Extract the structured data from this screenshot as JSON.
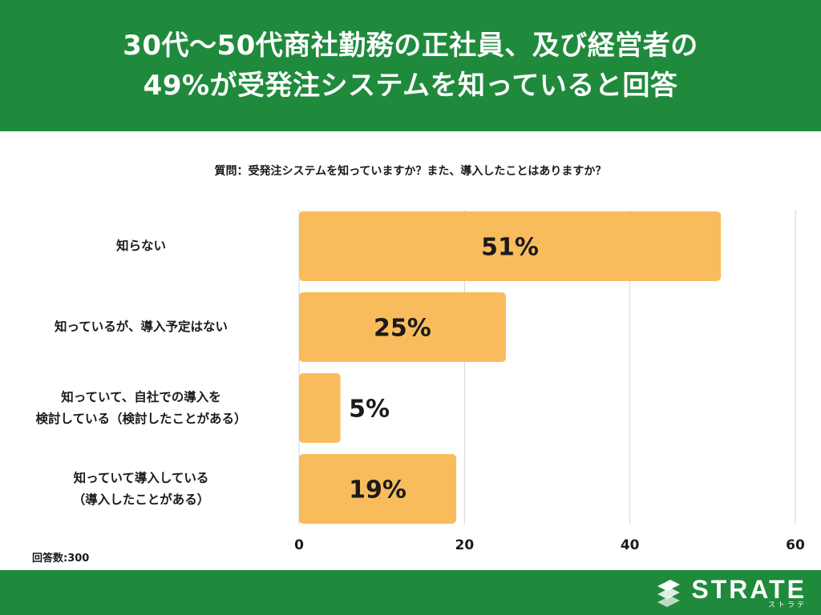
{
  "header": {
    "title_line1": "30代〜50代商社勤務の正社員、及び経営者の",
    "title_line2": "49%が受発注システムを知っていると回答"
  },
  "question": "質問：受発注システムを知っていますか？また、導入したことはありますか？",
  "chart_data": {
    "type": "bar",
    "orientation": "horizontal",
    "categories": [
      [
        "知らない"
      ],
      [
        "知っているが、導入予定はない"
      ],
      [
        "知っていて、自社での導入を",
        "検討している（検討したことがある）"
      ],
      [
        "知っていて導入している",
        "（導入したことがある）"
      ]
    ],
    "values": [
      51,
      25,
      5,
      19
    ],
    "data_labels": [
      "51%",
      "25%",
      "5%",
      "19%"
    ],
    "xlim": [
      0,
      60
    ],
    "x_ticks": [
      "0",
      "20",
      "40",
      "60"
    ],
    "grid": true,
    "bar_color": "#f9bc5c"
  },
  "footnote": "回答数:300",
  "logo": {
    "name": "STRATE",
    "kana": "ストラテ"
  }
}
